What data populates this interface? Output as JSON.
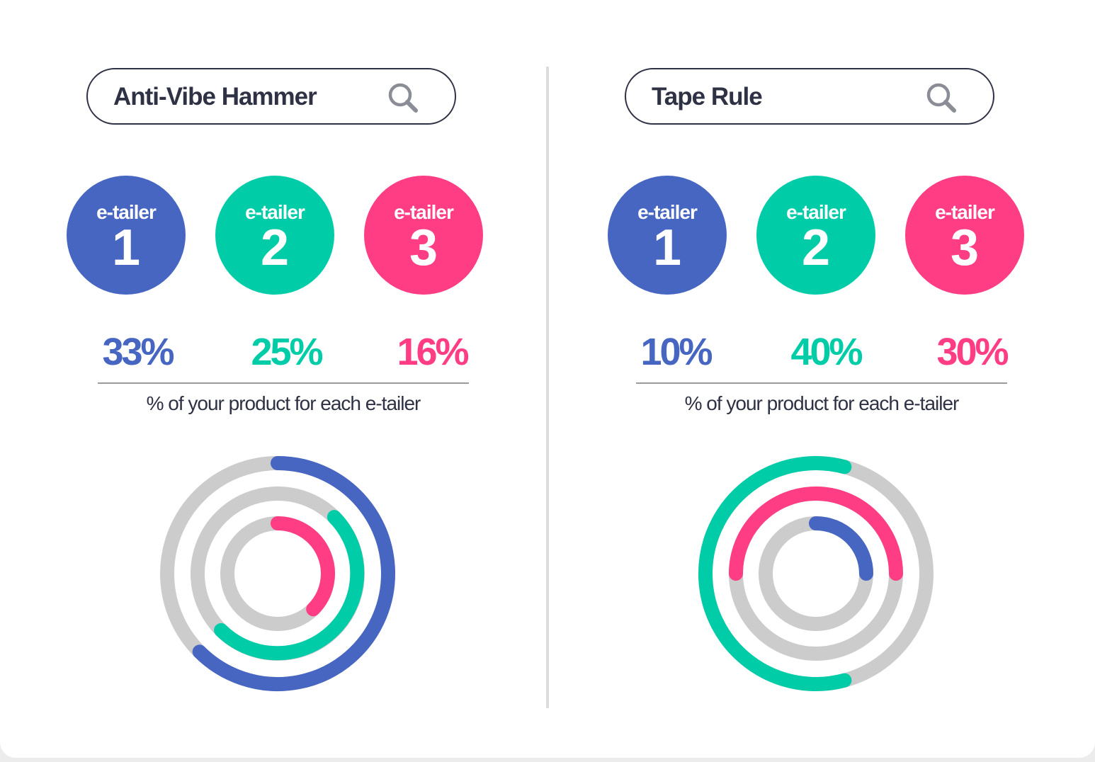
{
  "colors": {
    "etailer_1": "#4666c2",
    "etailer_2": "#00cca8",
    "etailer_3": "#ff3d84",
    "track": "#cccccc",
    "text": "#2e3244"
  },
  "icons": {
    "search": "search-icon"
  },
  "etailer_label": "e-tailer",
  "chart_data": [
    {
      "type": "radial-bar",
      "product": "Anti-Vibe Hammer",
      "caption": "% of your product for each e-tailer",
      "etailers": [
        {
          "label": "e-tailer",
          "number": "1",
          "value": 33,
          "display": "33%"
        },
        {
          "label": "e-tailer",
          "number": "2",
          "value": 25,
          "display": "25%"
        },
        {
          "label": "e-tailer",
          "number": "3",
          "value": 16,
          "display": "16%"
        }
      ],
      "rings": [
        {
          "etailer": 1,
          "start_deg": 0,
          "end_deg": 225
        },
        {
          "etailer": 2,
          "start_deg": 45,
          "end_deg": 225
        },
        {
          "etailer": 3,
          "start_deg": 0,
          "end_deg": 135
        }
      ]
    },
    {
      "type": "radial-bar",
      "product": "Tape Rule",
      "caption": "% of your product for each e-tailer",
      "etailers": [
        {
          "label": "e-tailer",
          "number": "1",
          "value": 10,
          "display": "10%"
        },
        {
          "label": "e-tailer",
          "number": "2",
          "value": 40,
          "display": "40%"
        },
        {
          "label": "e-tailer",
          "number": "3",
          "value": 30,
          "display": "30%"
        }
      ],
      "rings": [
        {
          "etailer": 2,
          "start_deg": 165,
          "end_deg": 15
        },
        {
          "etailer": 3,
          "start_deg": 270,
          "end_deg": 90
        },
        {
          "etailer": 1,
          "start_deg": 0,
          "end_deg": 90
        }
      ]
    }
  ]
}
